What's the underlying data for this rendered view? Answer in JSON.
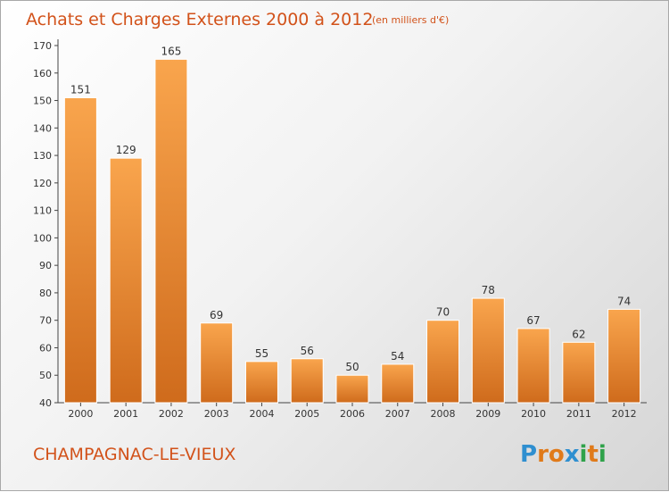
{
  "chart_data": {
    "type": "bar",
    "title": "Achats et Charges Externes 2000 à 2012",
    "subtitle": "(en milliers d'€)",
    "xlabel": "",
    "ylabel": "",
    "categories": [
      "2000",
      "2001",
      "2002",
      "2003",
      "2004",
      "2005",
      "2006",
      "2007",
      "2008",
      "2009",
      "2010",
      "2011",
      "2012"
    ],
    "values": [
      151,
      129,
      165,
      69,
      55,
      56,
      50,
      54,
      70,
      78,
      67,
      62,
      74
    ],
    "ylim": [
      40,
      170
    ],
    "yticks": [
      40,
      50,
      60,
      70,
      80,
      90,
      100,
      110,
      120,
      130,
      140,
      150,
      160,
      170
    ],
    "grid": false,
    "bar_color_light": "#f9a54d",
    "bar_color_dark": "#cf6b1c",
    "bar_stroke": "#ffffff"
  },
  "footer": {
    "commune": "CHAMPAGNAC-LE-VIEUX",
    "logo": {
      "text": "Proxiti",
      "letters": [
        "P",
        "r",
        "o",
        "x",
        "i",
        "t",
        "i"
      ],
      "colors": [
        "#2f8fd0",
        "#e07a1a",
        "#e07a1a",
        "#2f8fd0",
        "#2fa24a",
        "#e07a1a",
        "#2fa24a"
      ]
    }
  }
}
